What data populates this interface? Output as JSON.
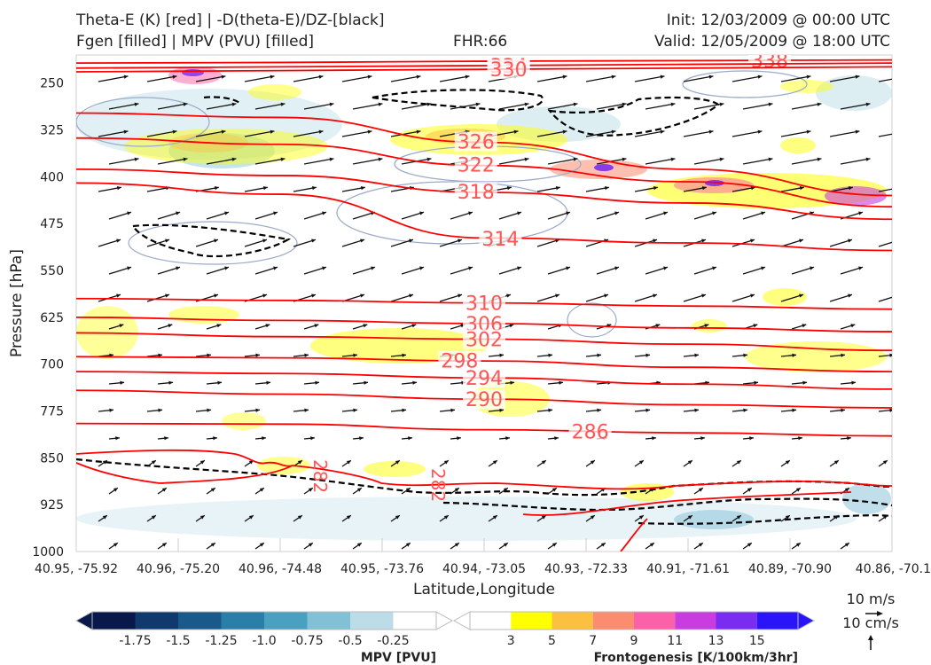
{
  "header": {
    "line1_left": "Theta-E (K) [red] | -D(theta-E)/DZ-[black]",
    "line2_left": "Fgen [filled] | MPV (PVU) [filled]",
    "fhr": "FHR:66",
    "init": "Init: 12/03/2009 @ 00:00 UTC",
    "valid": "Valid: 12/05/2009 @ 18:00 UTC"
  },
  "colors": {
    "theta_e": "#ff0000",
    "stability": "#000000",
    "theta_e_label": "#ff5555",
    "mpv_outline": "#9aaac8"
  },
  "chart_data": {
    "type": "cross-section",
    "xlabel": "Latitude,Longitude",
    "ylabel": "Pressure [hPa]",
    "x_ticks": [
      "40.95, -75.92",
      "40.96, -75.20",
      "40.96, -74.48",
      "40.95, -73.76",
      "40.94, -73.05",
      "40.93, -72.33",
      "40.91, -71.61",
      "40.89, -70.90",
      "40.86, -70.1"
    ],
    "y_ticks": [
      250,
      325,
      400,
      475,
      550,
      625,
      700,
      775,
      850,
      925,
      1000
    ],
    "ylim": [
      1000,
      205
    ],
    "theta_e_isentropes": [
      {
        "label": "338",
        "p": [
          218,
          217,
          215,
          214,
          213
        ],
        "lbl_x": 0.85
      },
      {
        "label": "334",
        "p": [
          226,
          224,
          222,
          220,
          218
        ],
        "lbl_x": 0.53
      },
      {
        "label": "330",
        "p": [
          232,
          230,
          228,
          226,
          224
        ],
        "lbl_x": 0.53
      },
      {
        "label": "326",
        "p": [
          298,
          305,
          345,
          388,
          430
        ],
        "lbl_x": 0.49
      },
      {
        "label": "322",
        "p": [
          338,
          348,
          382,
          408,
          448
        ],
        "lbl_x": 0.49
      },
      {
        "label": "318",
        "p": [
          388,
          398,
          425,
          442,
          468
        ],
        "lbl_x": 0.49
      },
      {
        "label": "314",
        "p": [
          410,
          428,
          498,
          506,
          518
        ],
        "lbl_x": 0.52
      },
      {
        "label": "310",
        "p": [
          595,
          598,
          602,
          607,
          612
        ],
        "lbl_x": 0.5
      },
      {
        "label": "306",
        "p": [
          625,
          630,
          635,
          642,
          648
        ],
        "lbl_x": 0.5
      },
      {
        "label": "302",
        "p": [
          650,
          656,
          660,
          668,
          678
        ],
        "lbl_x": 0.5
      },
      {
        "label": "298",
        "p": [
          688,
          690,
          695,
          705,
          712
        ],
        "lbl_x": 0.47
      },
      {
        "label": "294",
        "p": [
          712,
          715,
          722,
          732,
          740
        ],
        "lbl_x": 0.5
      },
      {
        "label": "290",
        "p": [
          742,
          748,
          756,
          765,
          770
        ],
        "lbl_x": 0.5
      },
      {
        "label": "286",
        "p": [
          795,
          796,
          805,
          810,
          815
        ],
        "lbl_x": 0.63
      }
    ],
    "mpv_legend": {
      "label": "MPV [PVU]",
      "ticks": [
        "-1.75",
        "-1.5",
        "-1.25",
        "-1.0",
        "-0.75",
        "-0.5",
        "-0.25"
      ],
      "colors": [
        "#08184a",
        "#103a6e",
        "#1a5a8a",
        "#2a7fa8",
        "#4aa0c0",
        "#82c0d6",
        "#bcdde7",
        "#ffffff"
      ]
    },
    "fgen_legend": {
      "label": "Frontogenesis [K/100km/3hr]",
      "ticks": [
        "3",
        "5",
        "7",
        "9",
        "11",
        "13",
        "15"
      ],
      "colors": [
        "#ffffff",
        "#ffff00",
        "#fcc040",
        "#fc8c70",
        "#fc60a8",
        "#c83ce0",
        "#7a2cf0",
        "#2a14f8"
      ]
    },
    "wind_key": {
      "horizontal": "10 m/s",
      "vertical": "10 cm/s"
    }
  }
}
